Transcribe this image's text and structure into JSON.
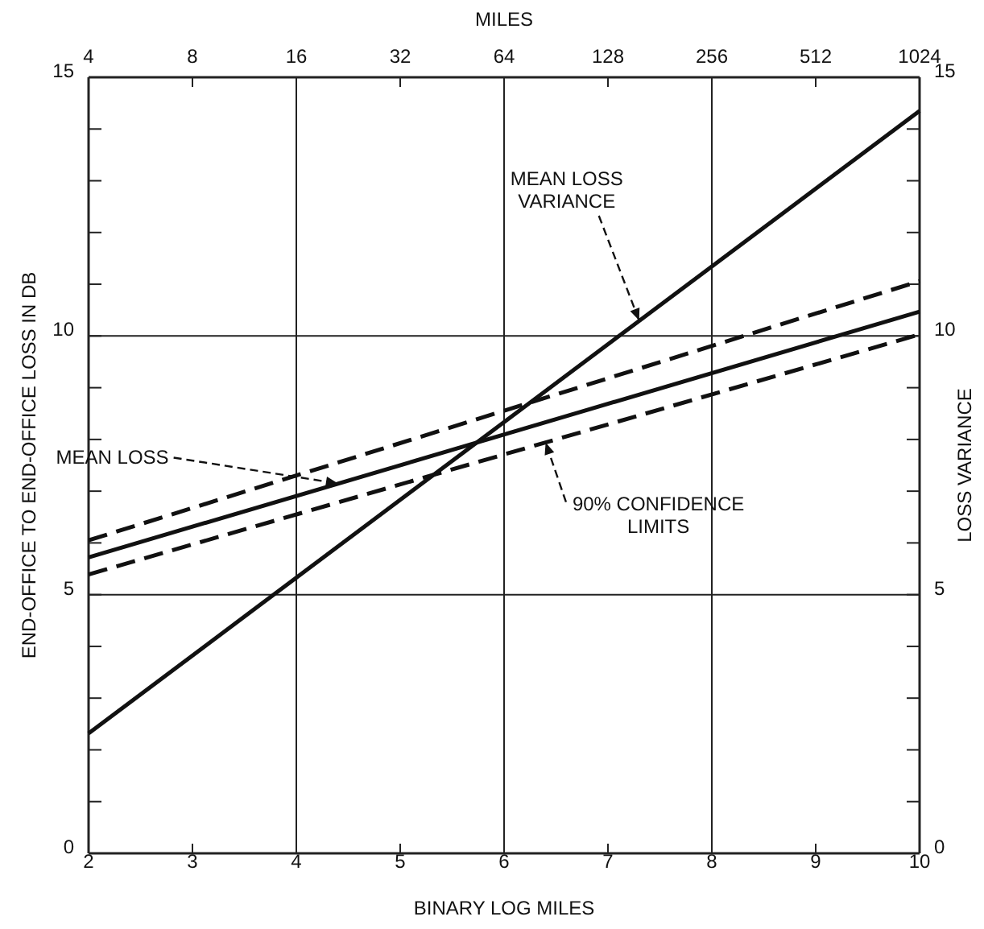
{
  "chart_data": {
    "type": "line",
    "xlabel": "BINARY LOG MILES",
    "ylabel": "END-OFFICE TO END-OFFICE LOSS IN DB",
    "y2label": "LOSS VARIANCE",
    "x2label": "MILES",
    "x": [
      2,
      10
    ],
    "series": [
      {
        "color": "#111111",
        "values": [
          6.05,
          11.06
        ],
        "line_style": "dashed"
      },
      {
        "color": "#111111",
        "values": [
          5.72,
          10.47
        ]
      },
      {
        "color": "#111111",
        "values": [
          5.39,
          10.03
        ],
        "line_style": "dashed"
      },
      {
        "color": "#111111",
        "values": [
          2.32,
          14.35
        ],
        "axis": "y2"
      }
    ],
    "xlim": [
      2,
      10
    ],
    "xticks": [
      2,
      3,
      4,
      5,
      6,
      7,
      8,
      9,
      10
    ],
    "x2lim": [
      4,
      1024
    ],
    "x2ticks": [
      4,
      8,
      16,
      32,
      64,
      128,
      256,
      512,
      1024
    ],
    "log": "x2",
    "ylim": [
      0,
      15
    ],
    "yticks": [
      0,
      {
        "value": 1,
        "label": null
      },
      {
        "value": 2,
        "label": null
      },
      {
        "value": 3,
        "label": null
      },
      {
        "value": 4,
        "label": null
      },
      5,
      {
        "value": 6,
        "label": null
      },
      {
        "value": 7,
        "label": null
      },
      {
        "value": 8,
        "label": null
      },
      {
        "value": 9,
        "label": null
      },
      10,
      {
        "value": 11,
        "label": null
      },
      {
        "value": 12,
        "label": null
      },
      {
        "value": 13,
        "label": null
      },
      {
        "value": 14,
        "label": null
      },
      15
    ],
    "y2lim": [
      0,
      15
    ],
    "y2ticks": [
      0,
      {
        "value": 1,
        "label": null
      },
      {
        "value": 2,
        "label": null
      },
      {
        "value": 3,
        "label": null
      },
      {
        "value": 4,
        "label": null
      },
      5,
      {
        "value": 6,
        "label": null
      },
      {
        "value": 7,
        "label": null
      },
      {
        "value": 8,
        "label": null
      },
      {
        "value": 9,
        "label": null
      },
      10,
      {
        "value": 11,
        "label": null
      },
      {
        "value": 12,
        "label": null
      },
      {
        "value": 13,
        "label": null
      },
      {
        "value": 14,
        "label": null
      },
      15
    ],
    "grid": true,
    "marker": "none",
    "annotations": [
      {
        "text": "MEAN LOSS VARIANCE",
        "x": 7.3,
        "y": 10.3
      },
      {
        "text": "MEAN LOSS",
        "x": 4.4,
        "y": 7.15
      },
      {
        "text": "90% CONFIDENCE LIMITS",
        "x": 6.4,
        "y": 7.94
      }
    ]
  }
}
